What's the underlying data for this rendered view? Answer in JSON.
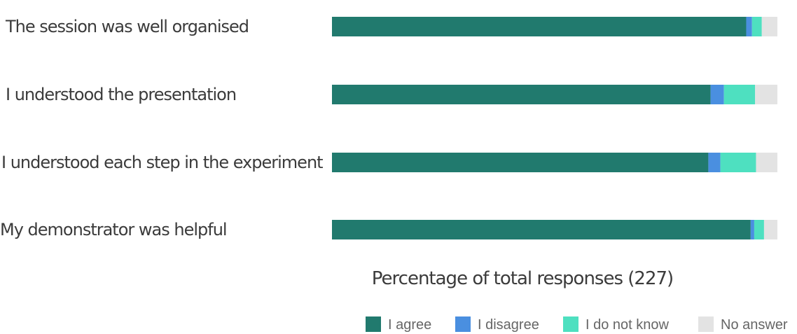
{
  "chart_data": {
    "type": "bar",
    "orientation": "horizontal",
    "stacked": true,
    "categories": [
      "The session was well organised",
      "I understood the presentation",
      "I understood each step in the experiment",
      "My demonstrator was helpful"
    ],
    "series": [
      {
        "name": "I agree",
        "color": "#217a6e",
        "values": [
          93,
          85,
          84.5,
          94
        ]
      },
      {
        "name": "I disagree",
        "color": "#4a8fe0",
        "values": [
          1.3,
          3,
          2.7,
          0.8
        ]
      },
      {
        "name": "I do not know",
        "color": "#4ee0c0",
        "values": [
          2.2,
          7,
          8,
          2.2
        ]
      },
      {
        "name": "No answer",
        "color": "#e3e3e3",
        "values": [
          3.5,
          5,
          4.8,
          3
        ]
      }
    ],
    "xlabel": "Percentage of total responses (227)",
    "ylabel": "",
    "xlim": [
      0,
      100
    ],
    "grid": false,
    "legend_position": "bottom-right"
  }
}
